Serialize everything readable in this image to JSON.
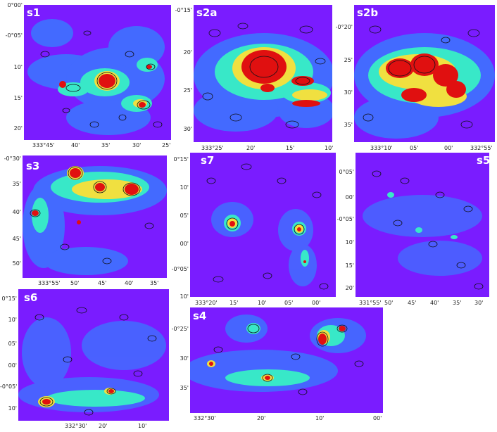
{
  "colors": {
    "background": "#7a1cff",
    "low": "#3a78ff",
    "mid": "#38e8c8",
    "high": "#f0e040",
    "peak": "#e01010",
    "contour": "#101018"
  },
  "panels": [
    {
      "id": "s1",
      "label": "s1",
      "yticks": [
        "0°00'",
        "-0°05'",
        "10'",
        "15'",
        "20'"
      ],
      "xticks": [
        "333°45'",
        "40'",
        "35'",
        "30'",
        "25'"
      ]
    },
    {
      "id": "s2a",
      "label": "s2a",
      "yticks": [
        "-0°15'",
        "20'",
        "25'",
        "30'"
      ],
      "xticks": [
        "333°25'",
        "20'",
        "15'",
        "10'"
      ]
    },
    {
      "id": "s2b",
      "label": "s2b",
      "yticks": [
        "-0°20'",
        "25'",
        "30'",
        "35'"
      ],
      "xticks": [
        "333°10'",
        "05'",
        "00'",
        "332°55'"
      ]
    },
    {
      "id": "s3",
      "label": "s3",
      "yticks": [
        "-0°30'",
        "35'",
        "40'",
        "45'",
        "50'"
      ],
      "xticks": [
        "333°55'",
        "50'",
        "45'",
        "40'",
        "35'"
      ]
    },
    {
      "id": "s7",
      "label": "s7",
      "yticks": [
        "0°15'",
        "10'",
        "05'",
        "00'",
        "-0°05'",
        "10'"
      ],
      "xticks": [
        "333°20'",
        "15'",
        "10'",
        "05'",
        "00'"
      ]
    },
    {
      "id": "s5",
      "label": "s5",
      "yticks": [
        "0°05'",
        "00'",
        "-0°05'",
        "10'",
        "15'",
        "20'"
      ],
      "xticks": [
        "331°55'",
        "50'",
        "45'",
        "40'",
        "35'",
        "30'"
      ]
    },
    {
      "id": "s6",
      "label": "s6",
      "yticks": [
        "0°15'",
        "10'",
        "05'",
        "00'",
        "-0°05'",
        "10'"
      ],
      "xticks": [
        "332°30'",
        "20'",
        "10'"
      ]
    },
    {
      "id": "s4",
      "label": "s4",
      "yticks": [
        "-0°25'",
        "30'",
        "35'"
      ],
      "xticks": [
        "332°30'",
        "20'",
        "10'",
        "00'"
      ]
    }
  ]
}
